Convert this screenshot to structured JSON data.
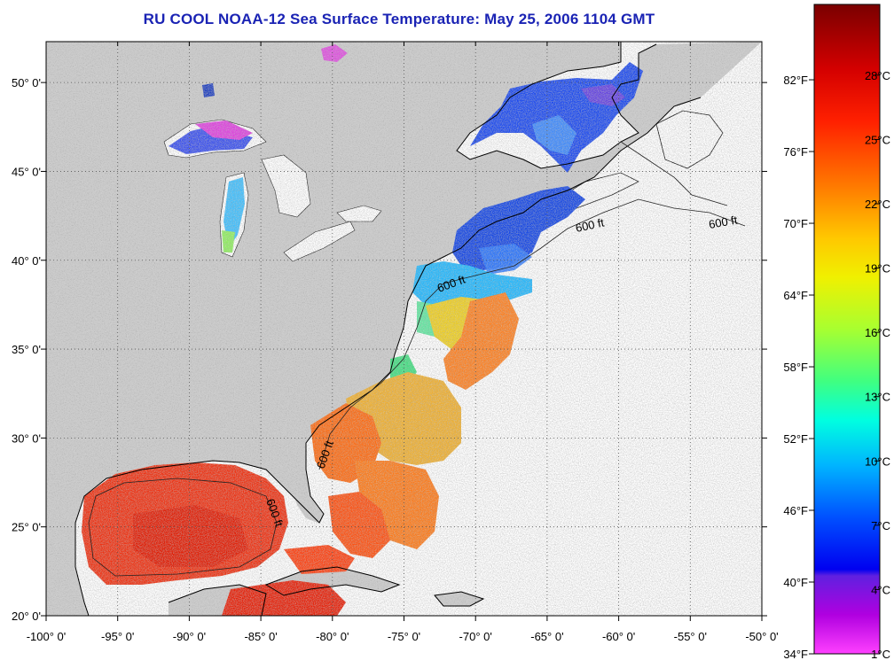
{
  "title": "RU COOL  NOAA-12  Sea Surface Temperature:  May 25, 2006 1104 GMT",
  "map": {
    "lon_range": [
      -100,
      -50
    ],
    "lat_range": [
      20,
      52.3
    ],
    "lon_ticks": [
      "-100° 0'",
      "-95° 0'",
      "-90° 0'",
      "-85° 0'",
      "-80° 0'",
      "-75° 0'",
      "-70° 0'",
      "-65° 0'",
      "-60° 0'",
      "-55° 0'",
      "-50° 0'"
    ],
    "lat_ticks": [
      "20° 0'",
      "25° 0'",
      "30° 0'",
      "35° 0'",
      "40° 0'",
      "45° 0'",
      "50° 0'"
    ],
    "grid": "dotted",
    "land_color": "#cccccc",
    "ocean_nodata_color": "#ffffff",
    "isobath_labels": [
      "600 ft",
      "600 ft",
      "600 ft",
      "600 ft",
      "600 ft"
    ]
  },
  "colorbar": {
    "fahrenheit_labels": [
      "82°F",
      "76°F",
      "70°F",
      "64°F",
      "58°F",
      "52°F",
      "46°F",
      "40°F",
      "34°F"
    ],
    "celsius_labels": [
      "28°C",
      "25°C",
      "22°C",
      "19°C",
      "16°C",
      "13°C",
      "10°C",
      "7°C",
      "4°C",
      "1°C"
    ],
    "colors_top_to_bottom": [
      "#8b0000",
      "#ff1a00",
      "#ff8000",
      "#ffd000",
      "#e0ff00",
      "#80ff40",
      "#00ffd0",
      "#00c8ff",
      "#0060ff",
      "#0000ff",
      "#8000ff",
      "#ff00ff",
      "#ff60c0"
    ]
  }
}
